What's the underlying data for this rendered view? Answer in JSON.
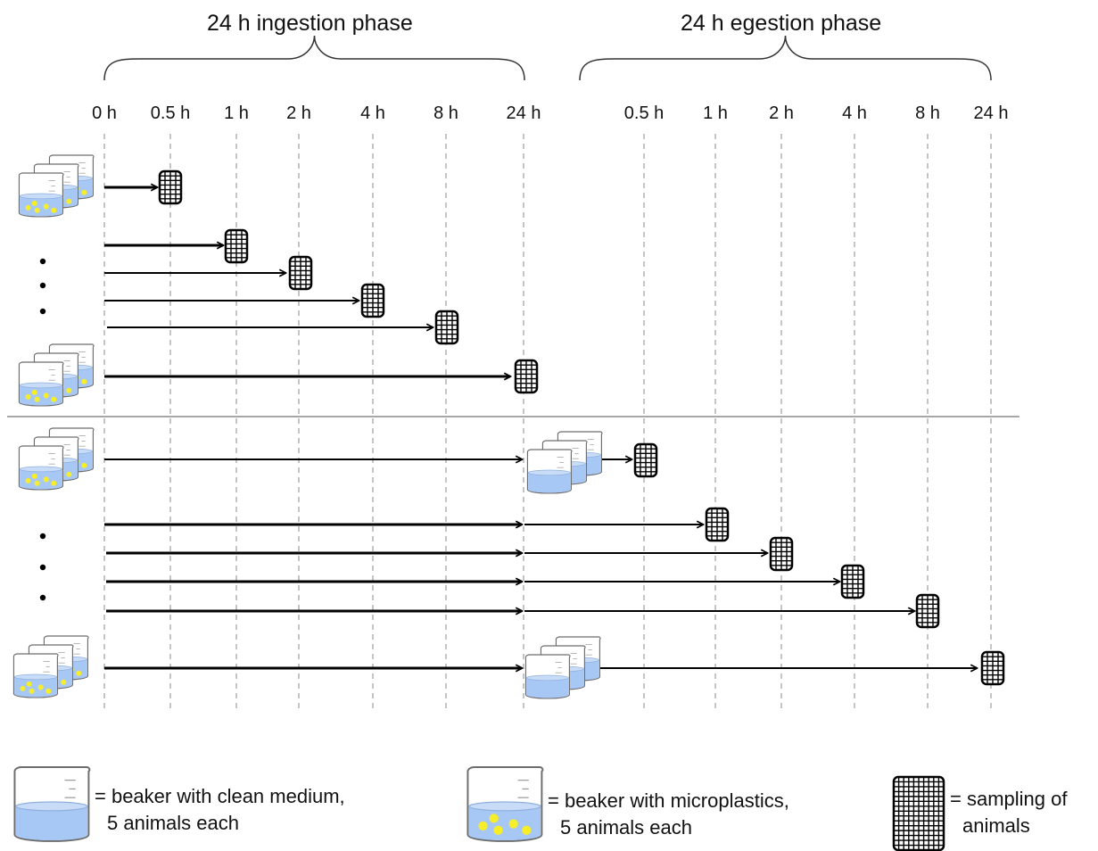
{
  "phases": {
    "ingestion": "24 h ingestion phase",
    "egestion": "24 h egestion phase"
  },
  "time_ticks": {
    "ingestion": [
      "0 h",
      "0.5 h",
      "1 h",
      "2 h",
      "4 h",
      "8 h",
      "24 h"
    ],
    "egestion": [
      "0.5 h",
      "1 h",
      "2 h",
      "4 h",
      "8 h",
      "24 h"
    ]
  },
  "legend": {
    "clean": {
      "line1": "= beaker with clean medium,",
      "line2": "5 animals each"
    },
    "microplastics": {
      "line1": "= beaker with microplastics,",
      "line2": "5 animals each"
    },
    "sampling": {
      "line1": "= sampling of",
      "line2": "animals"
    }
  },
  "colors": {
    "medium": "#a7c7f5",
    "particle": "#f7ee2a",
    "line": "#000000",
    "separator": "#8a8a8a"
  },
  "icons": {
    "beaker": "beaker-icon",
    "sampling": "sampling-grid-icon",
    "ellipsis": "vertical-dots-icon"
  }
}
